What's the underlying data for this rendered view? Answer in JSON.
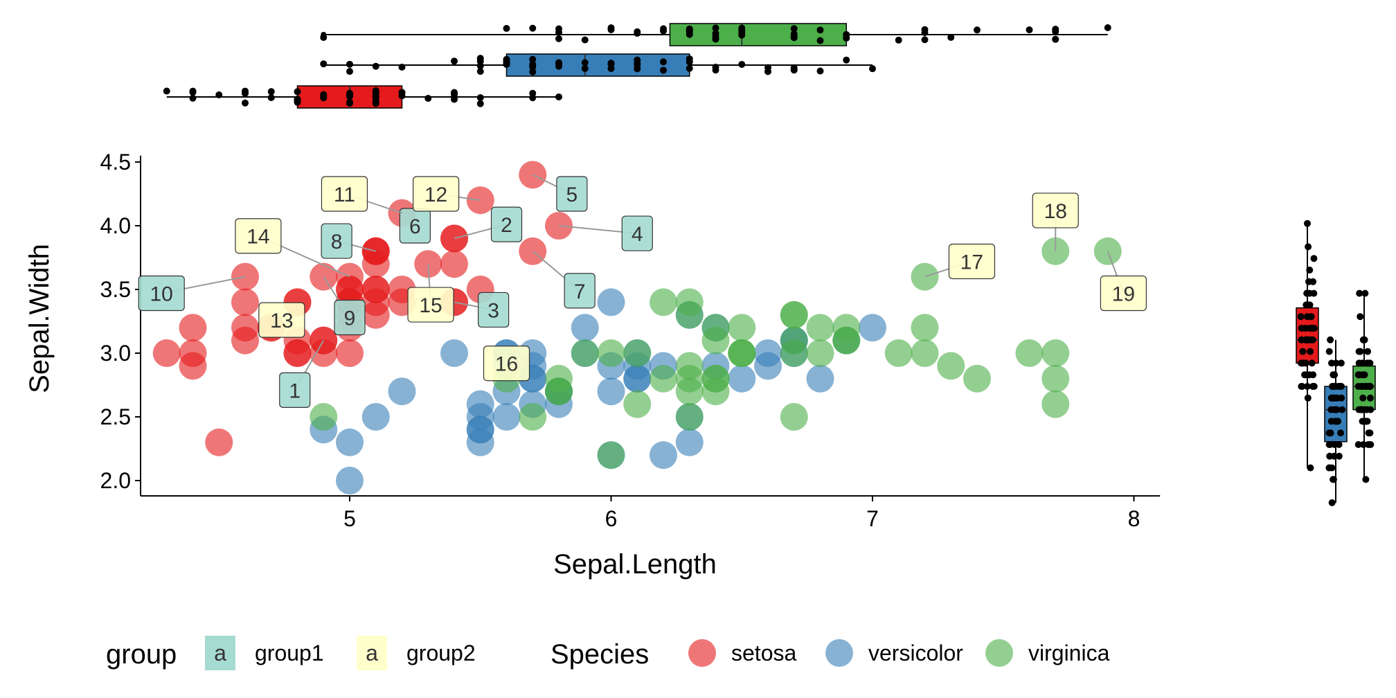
{
  "chart_data": {
    "type": "scatter",
    "xlabel": "Sepal.Length",
    "ylabel": "Sepal.Width",
    "xlim": [
      4.2,
      8.1
    ],
    "ylim": [
      1.88,
      4.55
    ],
    "x_ticks": [
      "5",
      "6",
      "7",
      "8"
    ],
    "y_ticks": [
      "2.0",
      "2.5",
      "3.0",
      "3.5",
      "4.0",
      "4.5"
    ],
    "colors": {
      "setosa": "#e41a1c",
      "versicolor": "#377eb8",
      "virginica": "#4daf4a",
      "group1": "#a6dbd1",
      "group2": "#ffffcc"
    },
    "series": [
      {
        "name": "setosa",
        "points": [
          [
            5.1,
            3.5
          ],
          [
            4.9,
            3.0
          ],
          [
            4.7,
            3.2
          ],
          [
            4.6,
            3.1
          ],
          [
            5.0,
            3.6
          ],
          [
            5.4,
            3.9
          ],
          [
            4.6,
            3.4
          ],
          [
            5.0,
            3.4
          ],
          [
            4.4,
            2.9
          ],
          [
            4.9,
            3.1
          ],
          [
            5.4,
            3.7
          ],
          [
            4.8,
            3.4
          ],
          [
            4.8,
            3.0
          ],
          [
            4.3,
            3.0
          ],
          [
            5.8,
            4.0
          ],
          [
            5.7,
            4.4
          ],
          [
            5.4,
            3.9
          ],
          [
            5.1,
            3.5
          ],
          [
            5.7,
            3.8
          ],
          [
            5.1,
            3.8
          ],
          [
            5.4,
            3.4
          ],
          [
            5.1,
            3.7
          ],
          [
            4.6,
            3.6
          ],
          [
            5.1,
            3.3
          ],
          [
            4.8,
            3.4
          ],
          [
            5.0,
            3.0
          ],
          [
            5.0,
            3.4
          ],
          [
            5.2,
            3.5
          ],
          [
            5.2,
            3.4
          ],
          [
            4.7,
            3.2
          ],
          [
            4.8,
            3.1
          ],
          [
            5.4,
            3.4
          ],
          [
            5.2,
            4.1
          ],
          [
            5.5,
            4.2
          ],
          [
            4.9,
            3.1
          ],
          [
            5.0,
            3.2
          ],
          [
            5.5,
            3.5
          ],
          [
            4.9,
            3.6
          ],
          [
            4.4,
            3.0
          ],
          [
            5.1,
            3.4
          ],
          [
            5.0,
            3.5
          ],
          [
            4.5,
            2.3
          ],
          [
            4.4,
            3.2
          ],
          [
            5.0,
            3.5
          ],
          [
            5.1,
            3.8
          ],
          [
            4.8,
            3.0
          ],
          [
            5.1,
            3.8
          ],
          [
            4.6,
            3.2
          ],
          [
            5.3,
            3.7
          ],
          [
            5.0,
            3.3
          ]
        ]
      },
      {
        "name": "versicolor",
        "points": [
          [
            7.0,
            3.2
          ],
          [
            6.4,
            3.2
          ],
          [
            6.9,
            3.1
          ],
          [
            5.5,
            2.3
          ],
          [
            6.5,
            2.8
          ],
          [
            5.7,
            2.8
          ],
          [
            6.3,
            3.3
          ],
          [
            4.9,
            2.4
          ],
          [
            6.6,
            2.9
          ],
          [
            5.2,
            2.7
          ],
          [
            5.0,
            2.0
          ],
          [
            5.9,
            3.0
          ],
          [
            6.0,
            2.2
          ],
          [
            6.1,
            2.9
          ],
          [
            5.6,
            2.9
          ],
          [
            6.7,
            3.1
          ],
          [
            5.6,
            3.0
          ],
          [
            5.8,
            2.7
          ],
          [
            6.2,
            2.2
          ],
          [
            5.6,
            2.5
          ],
          [
            5.9,
            3.2
          ],
          [
            6.1,
            2.8
          ],
          [
            6.3,
            2.5
          ],
          [
            6.1,
            2.8
          ],
          [
            6.4,
            2.9
          ],
          [
            6.6,
            3.0
          ],
          [
            6.8,
            2.8
          ],
          [
            6.7,
            3.0
          ],
          [
            6.0,
            2.9
          ],
          [
            5.7,
            2.6
          ],
          [
            5.5,
            2.4
          ],
          [
            5.5,
            2.4
          ],
          [
            5.8,
            2.7
          ],
          [
            6.0,
            2.7
          ],
          [
            5.4,
            3.0
          ],
          [
            6.0,
            3.4
          ],
          [
            6.7,
            3.1
          ],
          [
            6.3,
            2.3
          ],
          [
            5.6,
            3.0
          ],
          [
            5.5,
            2.5
          ],
          [
            5.5,
            2.6
          ],
          [
            6.1,
            3.0
          ],
          [
            5.8,
            2.6
          ],
          [
            5.0,
            2.3
          ],
          [
            5.6,
            2.7
          ],
          [
            5.7,
            3.0
          ],
          [
            5.7,
            2.9
          ],
          [
            6.2,
            2.9
          ],
          [
            5.1,
            2.5
          ],
          [
            5.7,
            2.8
          ]
        ]
      },
      {
        "name": "virginica",
        "points": [
          [
            6.3,
            3.3
          ],
          [
            5.8,
            2.7
          ],
          [
            7.1,
            3.0
          ],
          [
            6.3,
            2.9
          ],
          [
            6.5,
            3.0
          ],
          [
            7.6,
            3.0
          ],
          [
            4.9,
            2.5
          ],
          [
            7.3,
            2.9
          ],
          [
            6.7,
            2.5
          ],
          [
            7.2,
            3.6
          ],
          [
            6.5,
            3.2
          ],
          [
            6.4,
            2.7
          ],
          [
            6.8,
            3.0
          ],
          [
            5.7,
            2.5
          ],
          [
            5.8,
            2.8
          ],
          [
            6.4,
            3.2
          ],
          [
            6.5,
            3.0
          ],
          [
            7.7,
            3.8
          ],
          [
            7.7,
            2.6
          ],
          [
            6.0,
            2.2
          ],
          [
            6.9,
            3.2
          ],
          [
            5.6,
            2.8
          ],
          [
            7.7,
            2.8
          ],
          [
            6.3,
            2.7
          ],
          [
            6.7,
            3.3
          ],
          [
            7.2,
            3.2
          ],
          [
            6.2,
            2.8
          ],
          [
            6.1,
            3.0
          ],
          [
            6.4,
            2.8
          ],
          [
            7.2,
            3.0
          ],
          [
            7.4,
            2.8
          ],
          [
            7.9,
            3.8
          ],
          [
            6.4,
            2.8
          ],
          [
            6.3,
            2.8
          ],
          [
            6.1,
            2.6
          ],
          [
            7.7,
            3.0
          ],
          [
            6.3,
            3.4
          ],
          [
            6.4,
            3.1
          ],
          [
            6.0,
            3.0
          ],
          [
            6.9,
            3.1
          ],
          [
            6.7,
            3.1
          ],
          [
            6.9,
            3.1
          ],
          [
            5.8,
            2.7
          ],
          [
            6.8,
            3.2
          ],
          [
            6.7,
            3.3
          ],
          [
            6.7,
            3.0
          ],
          [
            6.3,
            2.5
          ],
          [
            6.5,
            3.0
          ],
          [
            6.2,
            3.4
          ],
          [
            5.9,
            3.0
          ]
        ]
      }
    ],
    "annotations": [
      {
        "text": "1",
        "group": "group1",
        "point": [
          4.9,
          3.1
        ],
        "label": [
          4.79,
          2.71
        ]
      },
      {
        "text": "2",
        "group": "group1",
        "point": [
          5.4,
          3.9
        ],
        "label": [
          5.6,
          4.01
        ]
      },
      {
        "text": "3",
        "group": "group1",
        "point": [
          5.4,
          3.4
        ],
        "label": [
          5.55,
          3.34
        ]
      },
      {
        "text": "4",
        "group": "group1",
        "point": [
          5.8,
          4.0
        ],
        "label": [
          6.1,
          3.94
        ]
      },
      {
        "text": "5",
        "group": "group1",
        "point": [
          5.7,
          4.4
        ],
        "label": [
          5.85,
          4.25
        ]
      },
      {
        "text": "6",
        "group": "group1",
        "point": [
          5.2,
          4.1
        ],
        "label": [
          5.25,
          4.0
        ]
      },
      {
        "text": "7",
        "group": "group1",
        "point": [
          5.7,
          3.8
        ],
        "label": [
          5.88,
          3.49
        ]
      },
      {
        "text": "8",
        "group": "group1",
        "point": [
          5.1,
          3.8
        ],
        "label": [
          4.95,
          3.88
        ]
      },
      {
        "text": "9",
        "group": "group1",
        "point": [
          4.9,
          3.6
        ],
        "label": [
          5.0,
          3.28
        ]
      },
      {
        "text": "10",
        "group": "group1",
        "point": [
          4.6,
          3.6
        ],
        "label": [
          4.28,
          3.47
        ]
      },
      {
        "text": "11",
        "group": "group2",
        "point": [
          5.2,
          4.1
        ],
        "label": [
          4.98,
          4.25
        ]
      },
      {
        "text": "12",
        "group": "group2",
        "point": [
          5.5,
          4.2
        ],
        "label": [
          5.33,
          4.25
        ]
      },
      {
        "text": "13",
        "group": "group2",
        "point": [
          4.7,
          3.2
        ],
        "label": [
          4.74,
          3.26
        ]
      },
      {
        "text": "14",
        "group": "group2",
        "point": [
          5.0,
          3.6
        ],
        "label": [
          4.65,
          3.92
        ]
      },
      {
        "text": "15",
        "group": "group2",
        "point": [
          5.3,
          3.7
        ],
        "label": [
          5.31,
          3.38
        ]
      },
      {
        "text": "16",
        "group": "group2",
        "point": [
          5.6,
          3.0
        ],
        "label": [
          5.6,
          2.92
        ]
      },
      {
        "text": "17",
        "group": "group2",
        "point": [
          7.2,
          3.6
        ],
        "label": [
          7.38,
          3.72
        ]
      },
      {
        "text": "18",
        "group": "group2",
        "point": [
          7.7,
          3.8
        ],
        "label": [
          7.7,
          4.12
        ]
      },
      {
        "text": "19",
        "group": "group2",
        "point": [
          7.9,
          3.8
        ],
        "label": [
          7.96,
          3.47
        ]
      }
    ],
    "marginal_boxplots": {
      "sepal_length": [
        {
          "name": "setosa",
          "min": 4.3,
          "q1": 4.8,
          "median": 5.0,
          "q3": 5.2,
          "max": 5.8
        },
        {
          "name": "versicolor",
          "min": 4.9,
          "q1": 5.6,
          "median": 5.9,
          "q3": 6.3,
          "max": 7.0
        },
        {
          "name": "virginica",
          "min": 4.9,
          "q1": 6.225,
          "median": 6.5,
          "q3": 6.9,
          "max": 7.9,
          "outliers": [
            4.9
          ]
        }
      ],
      "sepal_width": [
        {
          "name": "setosa",
          "min": 2.3,
          "q1": 3.2,
          "median": 3.4,
          "q3": 3.675,
          "max": 4.4
        },
        {
          "name": "versicolor",
          "min": 2.0,
          "q1": 2.525,
          "median": 2.8,
          "q3": 3.0,
          "max": 3.4
        },
        {
          "name": "virginica",
          "min": 2.2,
          "q1": 2.8,
          "median": 3.0,
          "q3": 3.175,
          "max": 3.8
        }
      ]
    },
    "legend": {
      "position": "bottom",
      "group_title": "group",
      "group_key_text": "a",
      "group_items": [
        "group1",
        "group2"
      ],
      "species_title": "Species",
      "species_items": [
        "setosa",
        "versicolor",
        "virginica"
      ]
    }
  }
}
